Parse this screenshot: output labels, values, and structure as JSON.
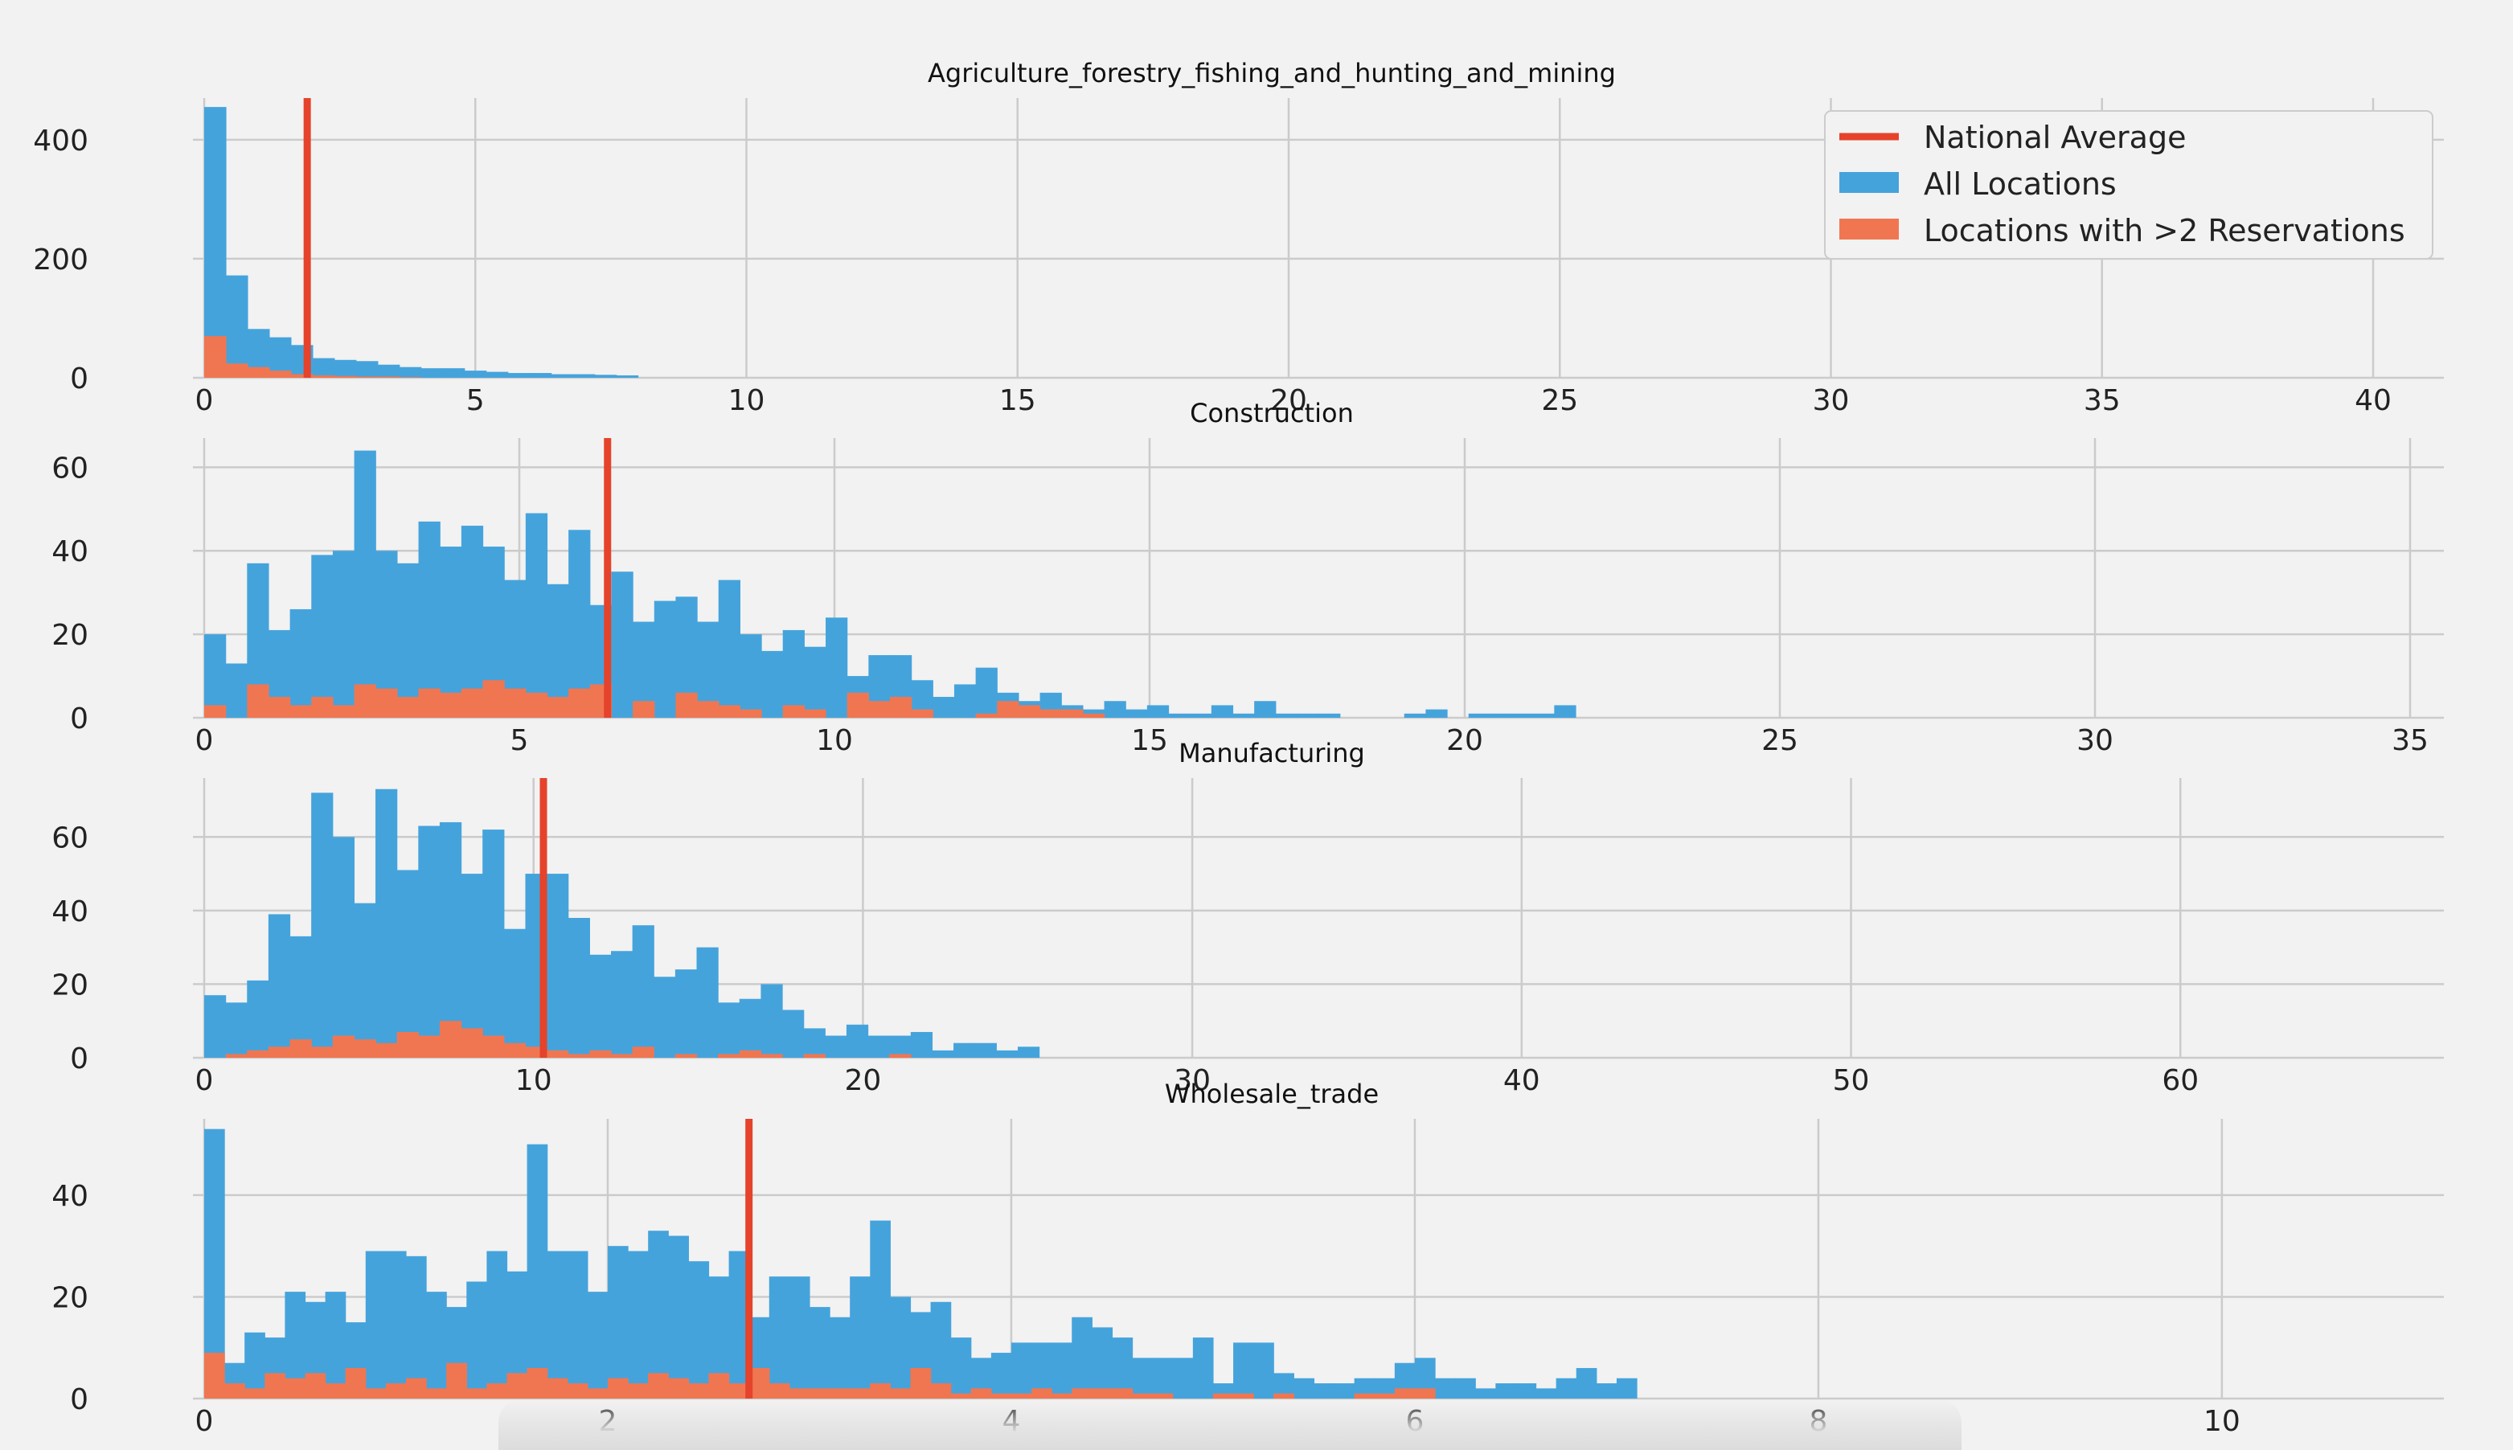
{
  "colors": {
    "background": "#f2f2f2",
    "grid": "#cbcbcb",
    "all_locations": "#45a3dc",
    "reservations": "#f07651",
    "national_average": "#e5432b"
  },
  "legend": {
    "placement": "top-right",
    "entries": [
      {
        "label": "National Average",
        "kind": "line"
      },
      {
        "label": "All Locations",
        "kind": "patch"
      },
      {
        "label": "Locations with >2 Reservations",
        "kind": "patch"
      }
    ]
  },
  "chart_data": [
    {
      "type": "bar",
      "title": "Agriculture_forestry_fishing_and_hunting_and_mining",
      "xlim": [
        0,
        40
      ],
      "ylim": [
        0,
        470
      ],
      "xticks": [
        0,
        5,
        10,
        15,
        20,
        25,
        30,
        35,
        40
      ],
      "yticks": [
        0,
        200,
        400
      ],
      "national_average": 1.9,
      "series": [
        {
          "name": "All Locations",
          "bin_width": 0.4,
          "values": [
            455,
            172,
            82,
            68,
            55,
            33,
            30,
            28,
            22,
            18,
            16,
            16,
            12,
            10,
            8,
            8,
            6,
            6,
            5,
            4
          ]
        },
        {
          "name": "Locations with >2 Reservations",
          "bin_width": 0.4,
          "values": [
            70,
            24,
            18,
            12,
            6,
            4,
            3,
            2,
            2,
            1
          ]
        }
      ]
    },
    {
      "type": "bar",
      "title": "Construction",
      "xlim": [
        0,
        35
      ],
      "ylim": [
        0,
        67
      ],
      "xticks": [
        0,
        5,
        10,
        15,
        20,
        25,
        30,
        35
      ],
      "yticks": [
        0,
        20,
        40,
        60
      ],
      "national_average": 6.4,
      "series": [
        {
          "name": "All Locations",
          "bin_width": 0.34,
          "values": [
            20,
            13,
            37,
            21,
            26,
            39,
            40,
            64,
            40,
            37,
            47,
            41,
            46,
            41,
            33,
            49,
            32,
            45,
            27,
            35,
            23,
            28,
            29,
            23,
            33,
            20,
            16,
            21,
            17,
            24,
            10,
            15,
            15,
            9,
            5,
            8,
            12,
            6,
            4,
            6,
            3,
            2,
            4,
            2,
            3,
            1,
            1,
            3,
            1,
            4,
            1,
            1,
            1,
            0,
            0,
            0,
            1,
            2,
            0,
            1,
            1,
            1,
            1,
            3
          ]
        },
        {
          "name": "Locations with >2 Reservations",
          "bin_width": 0.34,
          "values": [
            3,
            0,
            8,
            5,
            3,
            5,
            3,
            8,
            7,
            5,
            7,
            6,
            7,
            9,
            7,
            6,
            5,
            7,
            8,
            0,
            4,
            0,
            6,
            4,
            3,
            2,
            0,
            3,
            2,
            0,
            6,
            4,
            5,
            2,
            0,
            0,
            1,
            4,
            3,
            2,
            2,
            1
          ]
        }
      ]
    },
    {
      "type": "bar",
      "title": "Manufacturing",
      "xlim": [
        0,
        68
      ],
      "ylim": [
        0,
        76
      ],
      "xticks": [
        0,
        10,
        20,
        30,
        40,
        50,
        60
      ],
      "yticks": [
        0,
        20,
        40,
        60
      ],
      "national_average": 10.3,
      "series": [
        {
          "name": "All Locations",
          "bin_width": 0.65,
          "values": [
            17,
            15,
            21,
            39,
            33,
            72,
            60,
            42,
            73,
            51,
            63,
            64,
            50,
            62,
            35,
            50,
            50,
            38,
            28,
            29,
            36,
            22,
            24,
            30,
            15,
            16,
            20,
            13,
            8,
            6,
            9,
            6,
            6,
            7,
            2,
            4,
            4,
            2,
            3
          ]
        },
        {
          "name": "Locations with >2 Reservations",
          "bin_width": 0.65,
          "values": [
            0,
            1,
            2,
            3,
            5,
            3,
            6,
            5,
            4,
            7,
            6,
            10,
            8,
            6,
            4,
            3,
            2,
            1,
            2,
            1,
            3,
            0,
            1,
            0,
            1,
            2,
            1,
            0,
            1,
            0,
            0,
            0,
            1
          ]
        }
      ]
    },
    {
      "type": "bar",
      "title": "Wholesale_trade",
      "xlim": [
        0,
        11.1
      ],
      "ylim": [
        0,
        55
      ],
      "xticks": [
        0,
        2,
        4,
        6,
        8,
        10
      ],
      "yticks": [
        0,
        20,
        40
      ],
      "national_average": 2.7,
      "series": [
        {
          "name": "All Locations",
          "bin_width": 0.1,
          "values": [
            53,
            7,
            13,
            12,
            21,
            19,
            21,
            15,
            29,
            29,
            28,
            21,
            18,
            23,
            29,
            25,
            50,
            29,
            29,
            21,
            30,
            29,
            33,
            32,
            27,
            24,
            29,
            16,
            24,
            24,
            18,
            16,
            24,
            35,
            20,
            17,
            19,
            12,
            8,
            9,
            11,
            11,
            11,
            16,
            14,
            12,
            8,
            8,
            8,
            12,
            3,
            11,
            11,
            5,
            4,
            3,
            3,
            4,
            4,
            7,
            8,
            4,
            4,
            2,
            3,
            3,
            2,
            4,
            6,
            3,
            4
          ]
        },
        {
          "name": "Locations with >2 Reservations",
          "bin_width": 0.1,
          "values": [
            9,
            3,
            2,
            5,
            4,
            5,
            3,
            6,
            2,
            3,
            4,
            2,
            7,
            2,
            3,
            5,
            6,
            4,
            3,
            2,
            4,
            3,
            5,
            4,
            3,
            5,
            3,
            6,
            3,
            2,
            2,
            2,
            2,
            3,
            2,
            6,
            3,
            1,
            2,
            1,
            1,
            2,
            1,
            2,
            2,
            2,
            1,
            1,
            0,
            0,
            1,
            1,
            0,
            1,
            0,
            0,
            0,
            1,
            1,
            2,
            2
          ]
        }
      ]
    }
  ]
}
